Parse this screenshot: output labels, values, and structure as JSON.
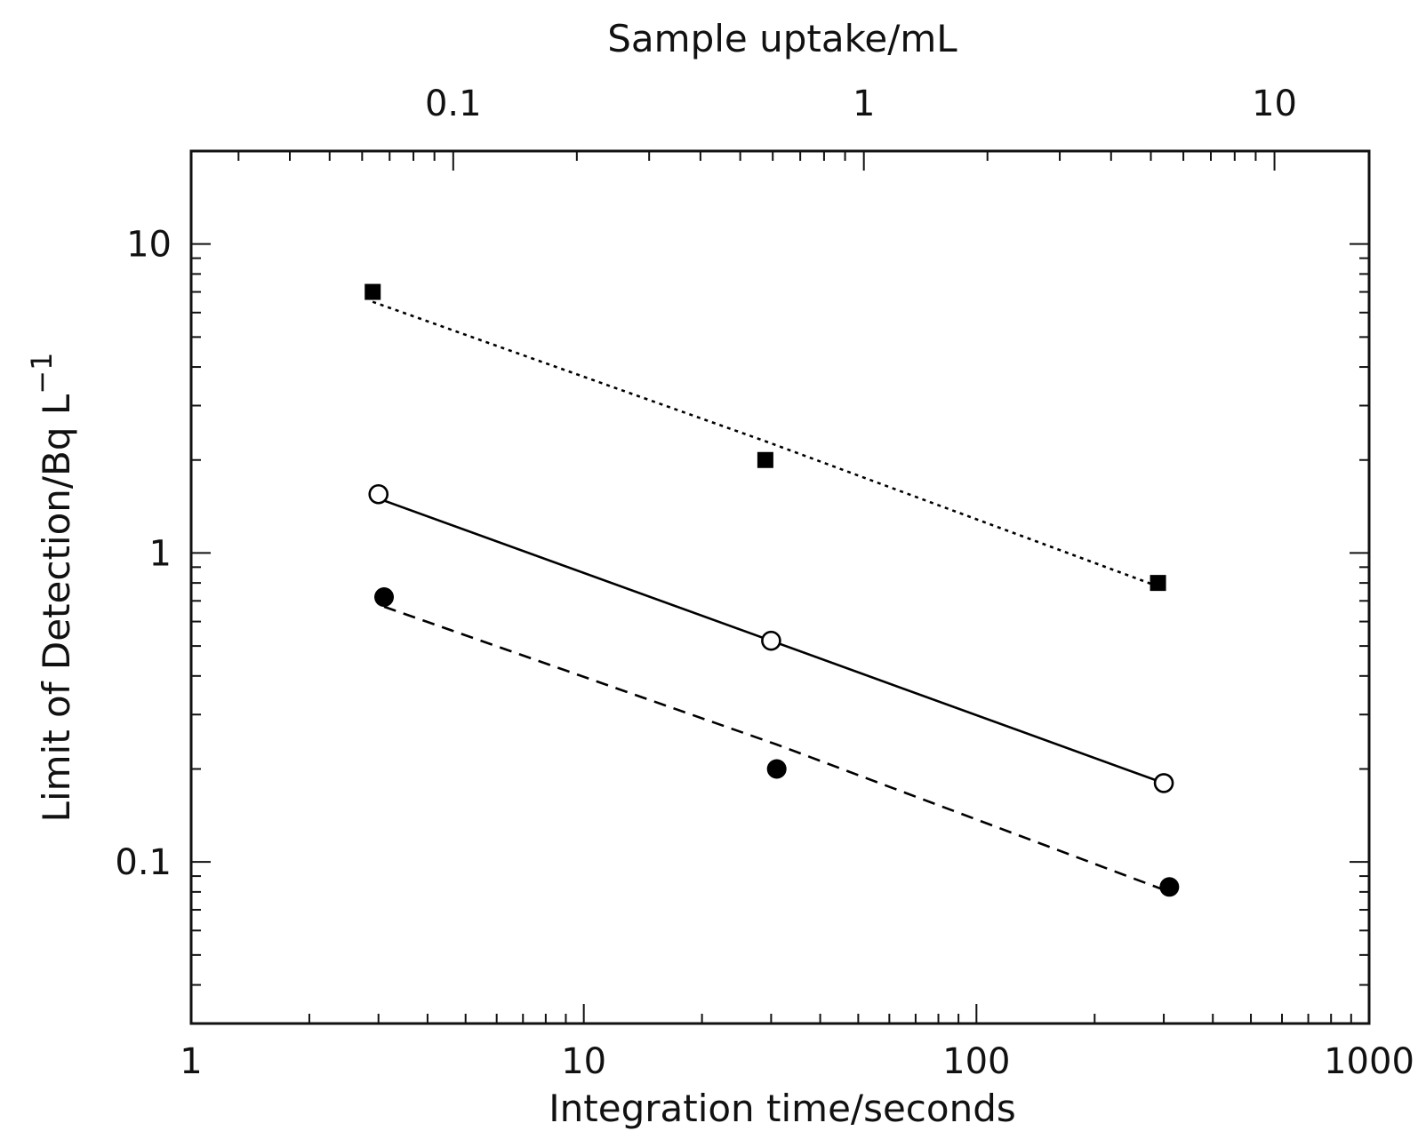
{
  "chart_data": {
    "type": "scatter",
    "title": "",
    "xlabel": "Integration time/seconds",
    "x2label": "Sample uptake/mL",
    "ylabel_main": "Limit of Detection/Bq L",
    "ylabel_sup": "−1",
    "x_scale": "log",
    "y_scale": "log",
    "xlim": [
      1,
      1000
    ],
    "ylim": [
      0.03,
      20
    ],
    "x2lim": [
      0.023,
      17
    ],
    "x_ticks": [
      1,
      10,
      100,
      1000
    ],
    "x_tick_labels": [
      "1",
      "10",
      "100",
      "1000"
    ],
    "x2_ticks": [
      0.1,
      1,
      10
    ],
    "x2_tick_labels": [
      "0.1",
      "1",
      "10"
    ],
    "y_ticks": [
      0.1,
      1,
      10
    ],
    "y_tick_labels": [
      "0.1",
      "1",
      "10"
    ],
    "grid": false,
    "legend": "none",
    "series": [
      {
        "marker": "filled-square",
        "line_style": "dotted",
        "color": "#000000",
        "x": [
          2.9,
          29,
          290
        ],
        "y": [
          7.0,
          2.0,
          0.8
        ],
        "fit_y": [
          6.5,
          2.3,
          0.78
        ]
      },
      {
        "marker": "open-circle",
        "line_style": "solid",
        "color": "#000000",
        "x": [
          3.0,
          30,
          300
        ],
        "y": [
          1.55,
          0.52,
          0.18
        ],
        "fit_y": [
          1.5,
          0.52,
          0.18
        ]
      },
      {
        "marker": "filled-circle",
        "line_style": "dashed",
        "color": "#000000",
        "x": [
          3.1,
          31,
          310
        ],
        "y": [
          0.72,
          0.2,
          0.083
        ],
        "fit_y": [
          0.67,
          0.24,
          0.08
        ]
      }
    ]
  }
}
